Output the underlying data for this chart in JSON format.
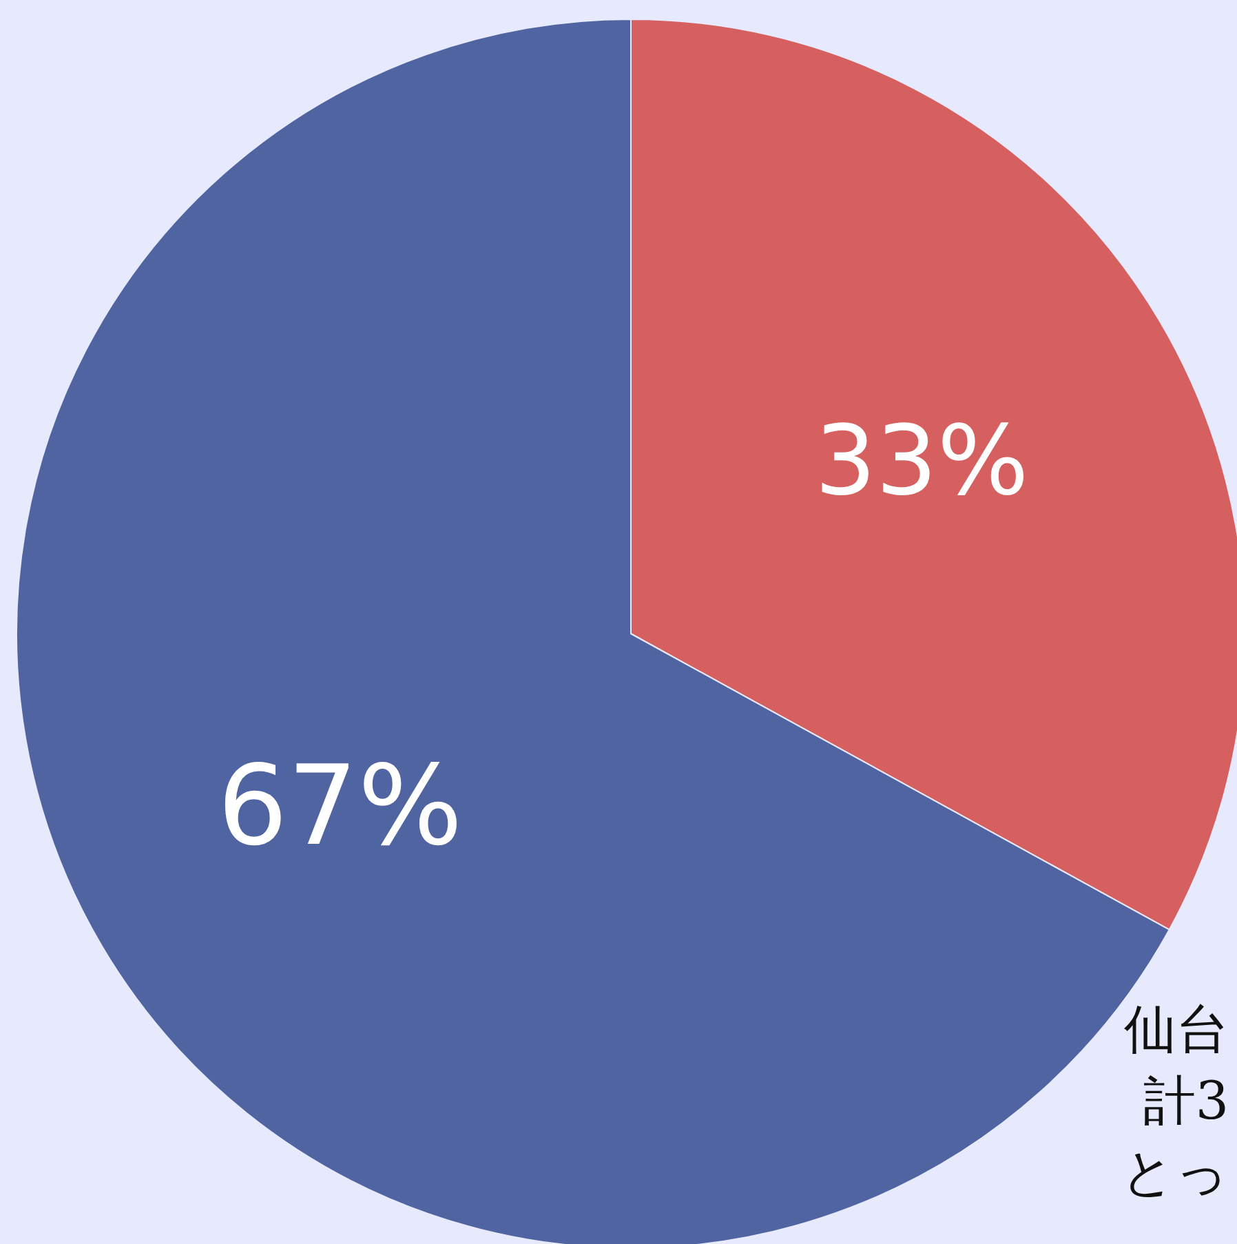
{
  "chart_data": {
    "type": "pie",
    "categories": [
      null,
      null
    ],
    "values": [
      33,
      67
    ],
    "colors": [
      "#d5605f",
      "#4f64a0"
    ],
    "value_labels": [
      "33%",
      "67%"
    ],
    "annotations": [
      "仙台",
      "計3",
      "とっ"
    ]
  }
}
